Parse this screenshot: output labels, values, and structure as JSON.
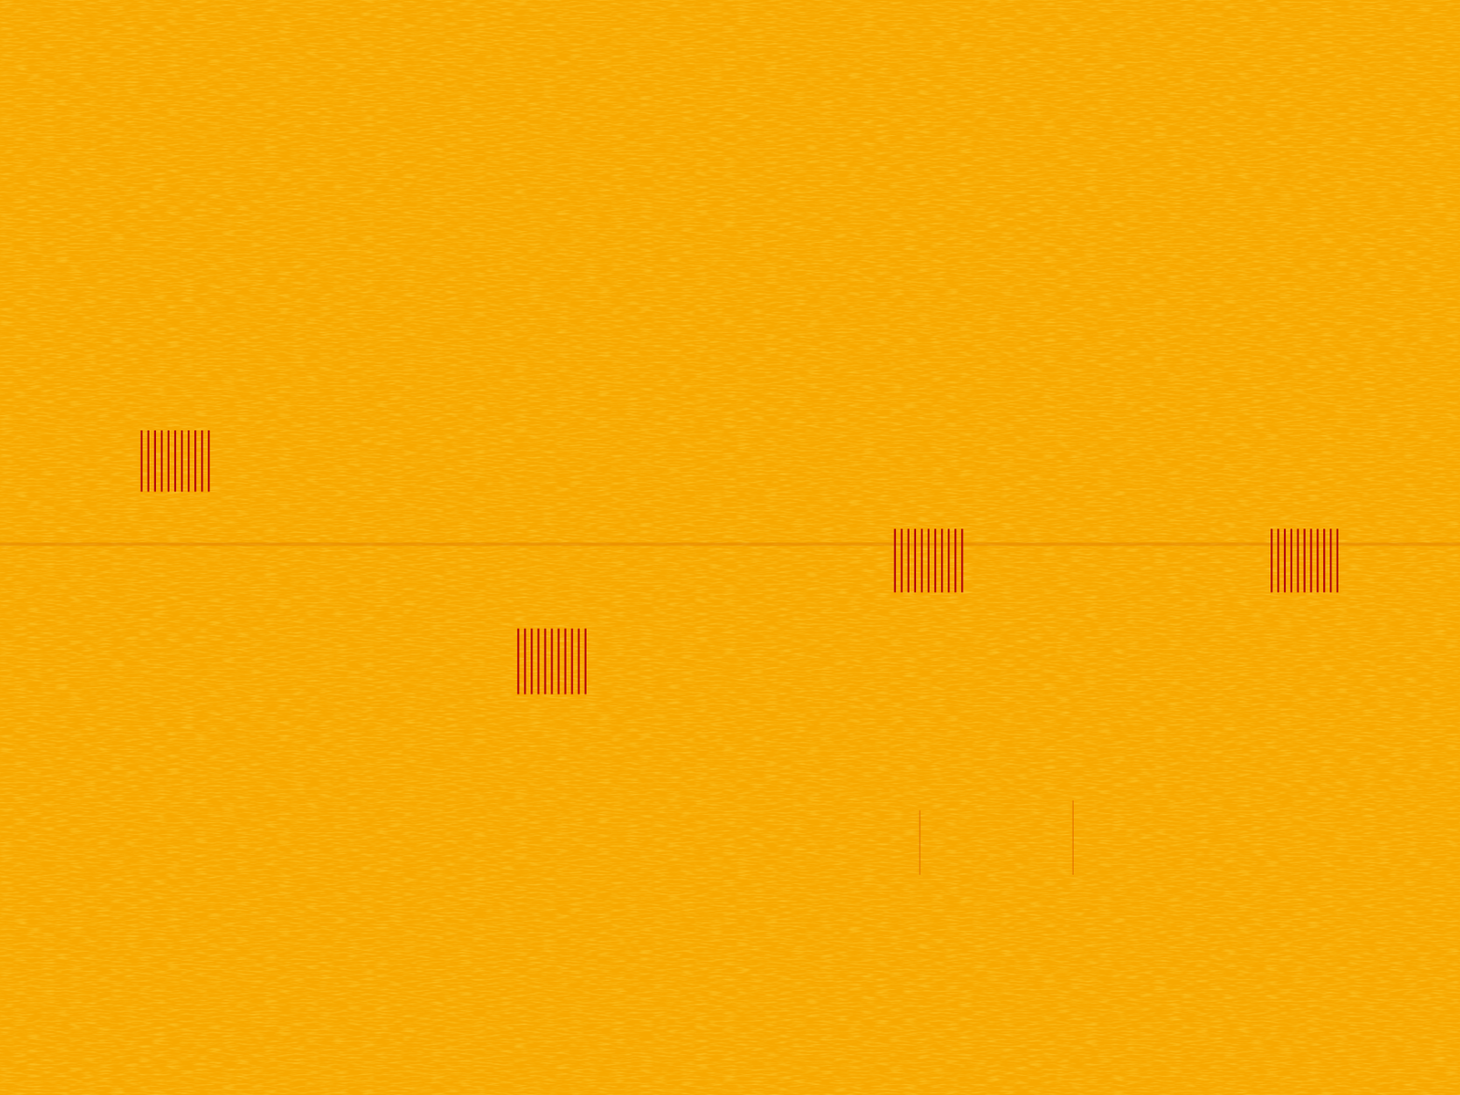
{
  "chart_data": {
    "type": "spectrogram",
    "xlim": [
      0,
      100
    ],
    "ylim": [
      0,
      100
    ],
    "tick_labels": false,
    "color": "#b0000c",
    "bursts": [
      {
        "x": [
          9.7,
          14.3
        ],
        "y": [
          55.1,
          60.7
        ],
        "lines": 11
      },
      {
        "x": [
          35.5,
          40.1
        ],
        "y": [
          36.6,
          42.6
        ],
        "lines": 11
      },
      {
        "x": [
          61.3,
          65.9
        ],
        "y": [
          45.9,
          51.7
        ],
        "lines": 11
      },
      {
        "x": [
          87.1,
          91.6
        ],
        "y": [
          45.9,
          51.7
        ],
        "lines": 11
      }
    ],
    "hline": 50.3,
    "marks": [
      {
        "x": 63.0,
        "y": [
          20.1,
          26.0
        ]
      },
      {
        "x": 73.5,
        "y": [
          20.1,
          26.9
        ]
      }
    ]
  }
}
